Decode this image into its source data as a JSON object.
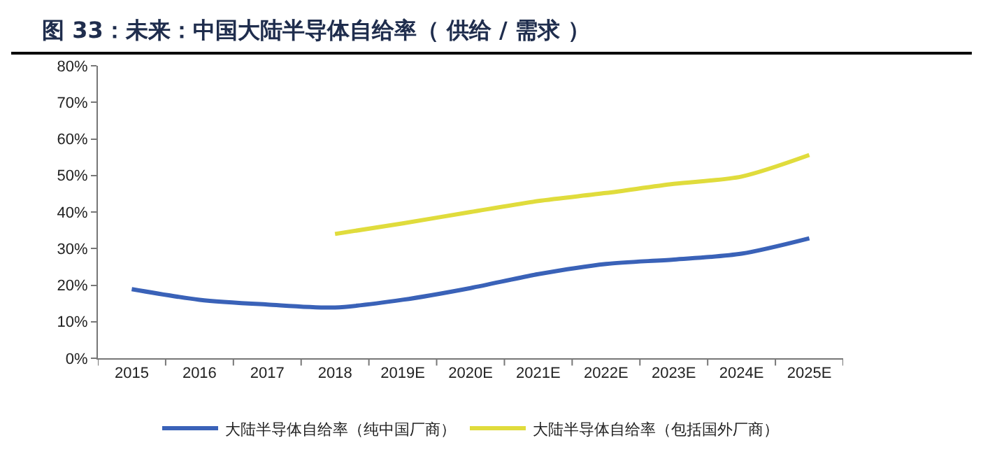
{
  "chart_data": {
    "type": "line",
    "title": "图 33：未来：中国大陆半导体自给率（ 供给 / 需求 ）",
    "categories": [
      "2015",
      "2016",
      "2017",
      "2018",
      "2019E",
      "2020E",
      "2021E",
      "2022E",
      "2023E",
      "2024E",
      "2025E"
    ],
    "series": [
      {
        "name": "大陆半导体自给率（纯中国厂商）",
        "color": "#3a62b8",
        "values": [
          18.9,
          16,
          14.7,
          13.9,
          16,
          19.2,
          23,
          25.8,
          27,
          28.6,
          32.8
        ]
      },
      {
        "name": "大陆半导体自给率（包括国外厂商）",
        "color": "#e0dc3c",
        "values": [
          null,
          null,
          null,
          34,
          36.9,
          40,
          43,
          45.2,
          47.7,
          49.7,
          55.6
        ]
      }
    ],
    "ylim": [
      0,
      80
    ],
    "yticks": [
      {
        "value": 0,
        "label": "0%"
      },
      {
        "value": 10,
        "label": "10%"
      },
      {
        "value": 20,
        "label": "20%"
      },
      {
        "value": 30,
        "label": "30%"
      },
      {
        "value": 40,
        "label": "40%"
      },
      {
        "value": 50,
        "label": "50%"
      },
      {
        "value": 60,
        "label": "60%"
      },
      {
        "value": 70,
        "label": "70%"
      },
      {
        "value": 80,
        "label": "80%"
      }
    ],
    "grid": false,
    "legend": "bottom",
    "marker": "none",
    "line_style": "solid"
  }
}
